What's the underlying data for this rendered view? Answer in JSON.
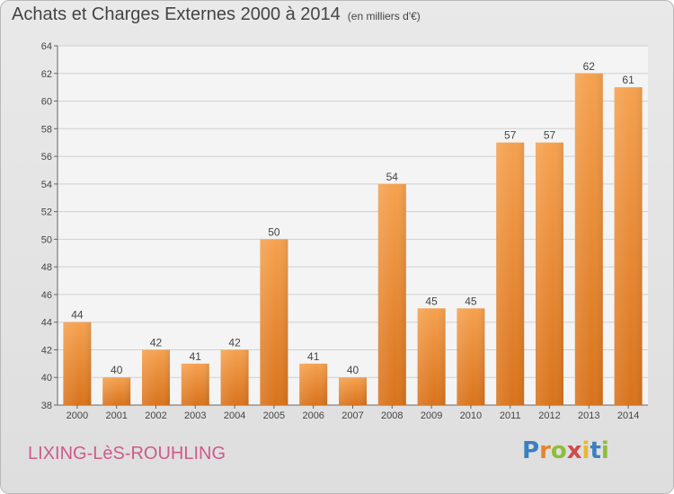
{
  "header": {
    "title": "Achats et Charges Externes 2000 à 2014",
    "unit": "(en milliers d'€)"
  },
  "footer": {
    "town": "LIXING-LèS-ROUHLING",
    "logo": [
      "P",
      "r",
      "o",
      "x",
      "i",
      "t",
      "i"
    ]
  },
  "chart_data": {
    "type": "bar",
    "title": "Achats et Charges Externes 2000 à 2014",
    "subtitle": "(en milliers d'€)",
    "xlabel": "",
    "ylabel": "",
    "categories": [
      "2000",
      "2001",
      "2002",
      "2003",
      "2004",
      "2005",
      "2006",
      "2007",
      "2008",
      "2009",
      "2010",
      "2011",
      "2012",
      "2013",
      "2014"
    ],
    "values": [
      44,
      40,
      42,
      41,
      42,
      50,
      41,
      40,
      54,
      45,
      45,
      57,
      57,
      62,
      61
    ],
    "ylim": [
      38,
      64
    ],
    "yticks": [
      38,
      40,
      42,
      44,
      46,
      48,
      50,
      52,
      54,
      56,
      58,
      60,
      62,
      64
    ],
    "grid": true,
    "bar_color": "#f29a3f",
    "grid_color": "#d0d0d0"
  }
}
